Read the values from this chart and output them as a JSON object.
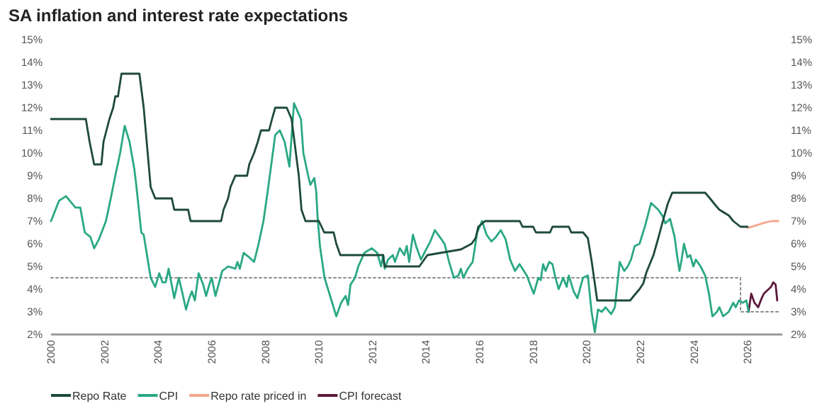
{
  "chart_data": {
    "type": "line",
    "title": "SA inflation and interest rate expectations",
    "xlim": [
      2000,
      2027.3
    ],
    "xticks": [
      2000,
      2002,
      2004,
      2006,
      2008,
      2010,
      2012,
      2014,
      2016,
      2018,
      2020,
      2022,
      2024,
      2026
    ],
    "ylim": [
      2,
      15
    ],
    "yticks": [
      {
        "value": 2,
        "label": "2%"
      },
      {
        "value": 3,
        "label": "3%"
      },
      {
        "value": 4,
        "label": "4%"
      },
      {
        "value": 5,
        "label": "5%"
      },
      {
        "value": 6,
        "label": "6%"
      },
      {
        "value": 7,
        "label": "7%"
      },
      {
        "value": 8,
        "label": "8%"
      },
      {
        "value": 9,
        "label": "9%"
      },
      {
        "value": 10,
        "label": "10%"
      },
      {
        "value": 11,
        "label": "11%"
      },
      {
        "value": 12,
        "label": "12%"
      },
      {
        "value": 13,
        "label": "13%"
      },
      {
        "value": 14,
        "label": "14%"
      },
      {
        "value": 15,
        "label": "15%"
      }
    ],
    "y2lim": [
      2,
      15
    ],
    "y2ticks": [
      {
        "value": 2,
        "label": "2%"
      },
      {
        "value": 3,
        "label": "3%"
      },
      {
        "value": 4,
        "label": "4%"
      },
      {
        "value": 5,
        "label": "5%"
      },
      {
        "value": 6,
        "label": "6%"
      },
      {
        "value": 7,
        "label": "7%"
      },
      {
        "value": 8,
        "label": "8%"
      },
      {
        "value": 9,
        "label": "9%"
      },
      {
        "value": 10,
        "label": "10%"
      },
      {
        "value": 11,
        "label": "11%"
      },
      {
        "value": 12,
        "label": "12%"
      },
      {
        "value": 13,
        "label": "13%"
      },
      {
        "value": 14,
        "label": "14%"
      },
      {
        "value": 15,
        "label": "15%"
      }
    ],
    "grid": false,
    "legend": "bottom",
    "marker": "none",
    "series": [
      {
        "name": "Repo Rate",
        "color": "#1e4a3a",
        "line_style": "solid",
        "x": [
          2000,
          2001.3,
          2001.44,
          2001.61,
          2001.88,
          2001.96,
          2002.18,
          2002.32,
          2002.4,
          2002.5,
          2002.63,
          2003.3,
          2003.46,
          2003.72,
          2003.89,
          2004.51,
          2004.6,
          2005.12,
          2005.21,
          2006.35,
          2006.44,
          2006.61,
          2006.7,
          2006.88,
          2007.32,
          2007.4,
          2007.58,
          2007.72,
          2007.84,
          2008.14,
          2008.25,
          2008.37,
          2008.8,
          2008.98,
          2009.25,
          2009.35,
          2009.5,
          2010.0,
          2010.2,
          2010.55,
          2010.65,
          2010.8,
          2012.4,
          2012.45,
          2013.75,
          2014.05,
          2015.3,
          2015.7,
          2015.85,
          2015.95,
          2016.2,
          2017.5,
          2017.6,
          2018.0,
          2018.1,
          2018.63,
          2018.72,
          2019.33,
          2019.42,
          2019.86,
          2020.04,
          2020.18,
          2020.3,
          2020.39,
          2021.62,
          2021.79,
          2021.97,
          2022.11,
          2022.23,
          2022.49,
          2022.67,
          2022.84,
          2023.02,
          2023.19,
          2024.42,
          2024.6,
          2024.77,
          2024.95,
          2025.3,
          2025.47,
          2025.74,
          2026.0
        ],
        "values": [
          11.5,
          11.5,
          10.5,
          9.5,
          9.5,
          10.5,
          11.5,
          12,
          12.5,
          12.5,
          13.5,
          13.5,
          12,
          8.5,
          8,
          8,
          7.5,
          7.5,
          7,
          7,
          7.5,
          8,
          8.5,
          9,
          9,
          9.5,
          10,
          10.5,
          11,
          11,
          11.5,
          12,
          12,
          11.5,
          9,
          7.5,
          7,
          7,
          6.5,
          6.5,
          6,
          5.5,
          5.5,
          5,
          5,
          5.5,
          5.75,
          6,
          6.25,
          6.75,
          7,
          7,
          6.75,
          6.75,
          6.5,
          6.5,
          6.75,
          6.75,
          6.5,
          6.5,
          6.25,
          5.25,
          4.25,
          3.5,
          3.5,
          3.75,
          4,
          4.25,
          4.75,
          5.5,
          6.25,
          7,
          7.75,
          8.25,
          8.25,
          8,
          7.75,
          7.5,
          7.25,
          7,
          6.75,
          6.75
        ]
      },
      {
        "name": "CPI",
        "color": "#2aa884",
        "line_style": "solid",
        "x": [
          2000,
          2000.3,
          2000.56,
          2000.91,
          2001.09,
          2001.26,
          2001.47,
          2001.61,
          2001.79,
          2002.05,
          2002.23,
          2002.4,
          2002.58,
          2002.75,
          2002.93,
          2003.11,
          2003.19,
          2003.37,
          2003.46,
          2003.72,
          2003.89,
          2004.04,
          2004.16,
          2004.28,
          2004.39,
          2004.6,
          2004.77,
          2004.91,
          2005.04,
          2005.16,
          2005.26,
          2005.37,
          2005.51,
          2005.68,
          2005.79,
          2005.91,
          2006.0,
          2006.14,
          2006.39,
          2006.61,
          2006.88,
          2006.96,
          2007.05,
          2007.19,
          2007.4,
          2007.58,
          2007.75,
          2007.93,
          2008.11,
          2008.37,
          2008.54,
          2008.72,
          2008.9,
          2009.07,
          2009.33,
          2009.42,
          2009.6,
          2009.68,
          2009.83,
          2009.9,
          2009.95,
          2010.04,
          2010.21,
          2010.47,
          2010.65,
          2010.83,
          2011.0,
          2011.09,
          2011.18,
          2011.35,
          2011.47,
          2011.7,
          2011.97,
          2012.18,
          2012.32,
          2012.4,
          2012.46,
          2012.58,
          2012.76,
          2012.84,
          2013.02,
          2013.19,
          2013.28,
          2013.37,
          2013.51,
          2013.63,
          2013.81,
          2013.98,
          2014.16,
          2014.33,
          2014.51,
          2014.69,
          2014.86,
          2015.04,
          2015.21,
          2015.3,
          2015.39,
          2015.56,
          2015.74,
          2015.91,
          2016.09,
          2016.26,
          2016.44,
          2016.61,
          2016.79,
          2016.97,
          2017.14,
          2017.32,
          2017.49,
          2017.76,
          2018.02,
          2018.19,
          2018.28,
          2018.37,
          2018.46,
          2018.6,
          2018.72,
          2018.81,
          2018.95,
          2019.12,
          2019.25,
          2019.33,
          2019.51,
          2019.65,
          2019.86,
          2020.04,
          2020.18,
          2020.3,
          2020.42,
          2020.56,
          2020.7,
          2020.91,
          2021.05,
          2021.23,
          2021.4,
          2021.53,
          2021.65,
          2021.79,
          2021.97,
          2022.18,
          2022.4,
          2022.67,
          2022.84,
          2022.93,
          2023.11,
          2023.28,
          2023.37,
          2023.46,
          2023.54,
          2023.63,
          2023.76,
          2023.86,
          2023.98,
          2024.07,
          2024.25,
          2024.42,
          2024.56,
          2024.69,
          2024.86,
          2024.95,
          2025.09,
          2025.3,
          2025.47,
          2025.56,
          2025.68,
          2025.82,
          2025.96,
          2026.04
        ],
        "values": [
          7,
          7.9,
          8.1,
          7.6,
          7.6,
          6.5,
          6.3,
          5.8,
          6.2,
          7,
          8,
          9,
          10,
          11.2,
          10.5,
          9.3,
          8.5,
          6.5,
          6.4,
          4.5,
          4.1,
          4.7,
          4.3,
          4.3,
          4.9,
          3.6,
          4.5,
          3.8,
          3.1,
          3.6,
          3.9,
          3.5,
          4.7,
          4.2,
          3.7,
          4.2,
          4.5,
          3.7,
          4.8,
          5,
          4.9,
          5.2,
          4.9,
          5.6,
          5.4,
          5.2,
          6,
          7,
          8.5,
          10.8,
          11,
          10.5,
          9.4,
          12.2,
          11.5,
          10,
          9,
          8.6,
          8.9,
          8.3,
          7.2,
          5.9,
          4.5,
          3.5,
          2.8,
          3.4,
          3.7,
          3.3,
          4.2,
          4.5,
          5,
          5.6,
          5.8,
          5.6,
          5,
          5.5,
          4.9,
          5.3,
          5.5,
          5.2,
          5.8,
          5.5,
          5.9,
          5.2,
          6.4,
          5.9,
          5.3,
          5.7,
          6.1,
          6.6,
          6.3,
          6,
          5.2,
          4.5,
          4.6,
          4.9,
          4.5,
          4.9,
          5.2,
          6.5,
          7,
          6.4,
          6.1,
          6.3,
          6.6,
          6.2,
          5.3,
          4.8,
          5.1,
          4.6,
          3.8,
          4.5,
          4.4,
          5.1,
          4.8,
          5.2,
          5.1,
          4.6,
          4,
          4.5,
          4.1,
          4.6,
          3.9,
          3.6,
          4.5,
          4.6,
          3,
          2.1,
          3.1,
          3,
          3.2,
          2.9,
          3.2,
          5.2,
          4.8,
          5,
          5.3,
          5.9,
          6,
          6.8,
          7.8,
          7.5,
          7.2,
          6.9,
          7.1,
          6.3,
          5.5,
          4.8,
          5.3,
          6,
          5.4,
          5.5,
          5,
          5.3,
          5,
          4.6,
          3.8,
          2.8,
          3,
          3.2,
          2.8,
          3,
          3.4,
          3.2,
          3.5,
          3.4,
          3.5,
          3
        ]
      },
      {
        "name": "Repo rate priced in",
        "color": "#f4a68e",
        "line_style": "solid",
        "x": [
          2026.0,
          2026.3,
          2026.6,
          2026.9,
          2027.15
        ],
        "values": [
          6.7,
          6.8,
          6.92,
          7,
          7
        ]
      },
      {
        "name": "CPI forecast",
        "color": "#5c1a3c",
        "line_style": "solid",
        "x": [
          2026.04,
          2026.14,
          2026.26,
          2026.4,
          2026.53,
          2026.61,
          2026.79,
          2026.88,
          2026.96,
          2027.05,
          2027.11
        ],
        "values": [
          3,
          3.8,
          3.4,
          3.2,
          3.6,
          3.8,
          4,
          4.1,
          4.3,
          4.2,
          3.5
        ]
      },
      {
        "color": "#8c8c8c",
        "line_style": "dotted",
        "x": [
          2000,
          2025.74,
          2025.74,
          2027.15
        ],
        "values": [
          4.5,
          4.5,
          3,
          3
        ]
      }
    ]
  }
}
